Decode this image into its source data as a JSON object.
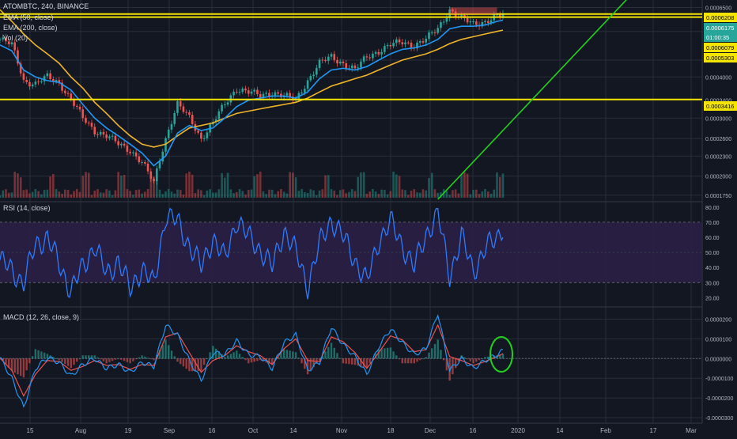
{
  "header": {
    "title": "ATOMBTC, 240, BINANCE",
    "indicators": [
      "EMA (50, close)",
      "EMA (200, close)",
      "Vol (20)"
    ]
  },
  "price_badges": [
    {
      "text": "0.0006208",
      "bg": "#f5e400",
      "fg": "#000000"
    },
    {
      "text": "0.0006175",
      "bg": "#26a69a",
      "fg": "#ffffff"
    },
    {
      "text": "01:00:35",
      "bg": "#26a69a",
      "fg": "#ffffff"
    },
    {
      "text": "0.0006079",
      "bg": "#f5e400",
      "fg": "#000000"
    },
    {
      "text": "0.0005303",
      "bg": "#f5e400",
      "fg": "#000000"
    },
    {
      "text": "0.0003416",
      "bg": "#f5e400",
      "fg": "#000000"
    }
  ],
  "rsi_label": "RSI (14, close)",
  "macd_label": "MACD (12, 26, close, 9)",
  "colors": {
    "background": "#131722",
    "grid": "#2a2e39",
    "up": "#26a69a",
    "down": "#ef5350",
    "ema50": "#2196f3",
    "ema200": "#f0b429",
    "horizontal_levels": "#f5e400",
    "trendline": "#22d11e",
    "rsi": "#2e7bff",
    "rsi_band": "#2a1f45",
    "macd": "#2196f3",
    "signal": "#ef5350",
    "highlight": "#22d11e"
  },
  "chart_data": [
    {
      "type": "candlestick",
      "title": "ATOMBTC, 240, BINANCE",
      "x_ticks": [
        "15",
        "Aug",
        "19",
        "Sep",
        "16",
        "Oct",
        "14",
        "Nov",
        "18",
        "Dec",
        "16",
        "2020",
        "14",
        "Feb",
        "17",
        "Mar"
      ],
      "y_scale": "log",
      "y_ticks": [
        "0.0006500",
        "0.0005500",
        "0.0004500",
        "0.0004000",
        "0.0003400",
        "0.0003000",
        "0.0002600",
        "0.0002300",
        "0.0002000",
        "0.0001750"
      ],
      "ylim": [
        0.00017,
        0.00067
      ],
      "horizontal_levels": [
        0.0006208,
        0.0006079,
        0.0003416
      ],
      "trendline": {
        "from": [
          148,
          0.00017
        ],
        "to": [
          212,
          0.00069
        ]
      },
      "close_series": {
        "t": [
          0,
          4,
          8,
          12,
          16,
          20,
          24,
          28,
          32,
          36,
          40,
          44,
          48,
          52,
          56,
          60,
          64,
          68,
          72,
          76,
          80,
          84,
          88,
          92,
          96,
          100,
          104,
          108,
          112,
          116,
          120,
          124,
          128,
          132,
          136,
          140,
          144,
          148,
          152,
          156,
          160,
          164,
          168,
          170
        ],
        "close": [
          0.00052,
          0.0005,
          0.00039,
          0.00038,
          0.0004,
          0.000385,
          0.00034,
          0.0003,
          0.000275,
          0.000265,
          0.00025,
          0.00024,
          0.00022,
          0.00019,
          0.00026,
          0.00033,
          0.0003,
          0.00026,
          0.00029,
          0.00033,
          0.00037,
          0.00036,
          0.00035,
          0.00036,
          0.00035,
          0.00034,
          0.00039,
          0.00044,
          0.00046,
          0.00044,
          0.00042,
          0.00046,
          0.00048,
          0.0005,
          0.00051,
          0.0005,
          0.00052,
          0.00056,
          0.00064,
          0.0006,
          0.00058,
          0.00059,
          0.00061,
          0.000618
        ]
      },
      "ema50": [
        0.0005,
        0.00048,
        0.00042,
        0.0004,
        0.00039,
        0.000385,
        0.000365,
        0.00033,
        0.0003,
        0.00028,
        0.000265,
        0.00025,
        0.000235,
        0.000215,
        0.00023,
        0.00027,
        0.000285,
        0.000275,
        0.00028,
        0.0003,
        0.000325,
        0.00034,
        0.000345,
        0.00035,
        0.00035,
        0.000345,
        0.00036,
        0.000395,
        0.00042,
        0.000425,
        0.00042,
        0.00043,
        0.00045,
        0.00047,
        0.000485,
        0.00049,
        0.0005,
        0.00052,
        0.00056,
        0.00057,
        0.00057,
        0.000575,
        0.00059,
        0.000595
      ],
      "ema200": [
        0.00064,
        0.00059,
        0.00054,
        0.0005,
        0.00047,
        0.00044,
        0.0004,
        0.00037,
        0.000335,
        0.00031,
        0.000285,
        0.000265,
        0.00025,
        0.000245,
        0.00025,
        0.000265,
        0.00028,
        0.000285,
        0.00029,
        0.0003,
        0.00031,
        0.000315,
        0.00032,
        0.000325,
        0.00033,
        0.000335,
        0.000345,
        0.00036,
        0.000375,
        0.000385,
        0.000395,
        0.000405,
        0.00042,
        0.000435,
        0.00045,
        0.00046,
        0.00047,
        0.000485,
        0.000505,
        0.00052,
        0.00053,
        0.00054,
        0.00055,
        0.000555
      ]
    },
    {
      "type": "line",
      "title": "RSI (14, close)",
      "y_ticks": [
        "80.00",
        "70.00",
        "60.00",
        "50.00",
        "40.00",
        "30.00",
        "20.00"
      ],
      "ylim": [
        15,
        82
      ],
      "band": [
        30,
        70
      ],
      "x": [
        0,
        4,
        8,
        12,
        16,
        20,
        24,
        28,
        32,
        36,
        40,
        44,
        48,
        52,
        56,
        60,
        64,
        68,
        72,
        76,
        80,
        84,
        88,
        92,
        96,
        100,
        104,
        108,
        112,
        116,
        120,
        124,
        128,
        132,
        136,
        140,
        144,
        148,
        152,
        156,
        160,
        164,
        168,
        170
      ],
      "values": [
        45,
        38,
        30,
        55,
        60,
        42,
        25,
        40,
        55,
        35,
        45,
        25,
        40,
        28,
        75,
        70,
        55,
        40,
        60,
        45,
        72,
        60,
        52,
        40,
        65,
        50,
        28,
        55,
        72,
        60,
        45,
        30,
        58,
        70,
        55,
        40,
        62,
        76,
        35,
        60,
        38,
        52,
        60,
        68
      ]
    },
    {
      "type": "line",
      "title": "MACD (12, 26, close, 9)",
      "y_ticks": [
        "0.0000200",
        "0.0000100",
        "0.0000000",
        "-0.0000100",
        "-0.0000200",
        "-0.0000300"
      ],
      "ylim": [
        -3.2e-05,
        2.5e-05
      ],
      "x": [
        0,
        4,
        8,
        12,
        16,
        20,
        24,
        28,
        32,
        36,
        40,
        44,
        48,
        52,
        56,
        60,
        64,
        68,
        72,
        76,
        80,
        84,
        88,
        92,
        96,
        100,
        104,
        108,
        112,
        116,
        120,
        124,
        128,
        132,
        136,
        140,
        144,
        148,
        152,
        156,
        160,
        164,
        168,
        170
      ],
      "macd": [
        5e-07,
        -1e-05,
        -2.5e-05,
        -5e-06,
        5e-07,
        -2e-06,
        -9e-06,
        -3e-06,
        0.0,
        -5e-06,
        -3e-06,
        -7e-06,
        -2e-06,
        -4e-06,
        1.7e-05,
        1.2e-05,
        -1e-06,
        -1.1e-05,
        3e-06,
        2e-06,
        9e-06,
        2e-06,
        1e-06,
        -5e-06,
        8e-06,
        1.2e-05,
        -6e-06,
        -2e-06,
        1.6e-05,
        7e-06,
        1e-06,
        -8e-06,
        6e-06,
        1.5e-05,
        8e-06,
        2e-06,
        5e-06,
        2.3e-05,
        -6e-06,
        0.0,
        -5e-06,
        -1e-06,
        2e-06,
        4e-06
      ],
      "signal": [
        2e-07,
        -6e-06,
        -1.9e-05,
        -8e-06,
        -1e-06,
        -1.5e-06,
        -6e-06,
        -4e-06,
        -1e-06,
        -3.5e-06,
        -3e-06,
        -5.5e-06,
        -3e-06,
        -3.5e-06,
        1.1e-05,
        1.3e-05,
        3e-06,
        -7e-06,
        -1e-06,
        1.5e-06,
        6.5e-06,
        3.5e-06,
        1.5e-06,
        -3e-06,
        5e-06,
        1e-05,
        -1e-06,
        -1.5e-06,
        1.1e-05,
        8.5e-06,
        3e-06,
        -5e-06,
        3e-06,
        1.15e-05,
        9.5e-06,
        3.5e-06,
        4.5e-06,
        1.7e-05,
        1e-06,
        -1e-06,
        -3.5e-06,
        -1.5e-06,
        1e-06,
        2.5e-06
      ],
      "annotation": "green circle around latest MACD crossover"
    }
  ]
}
